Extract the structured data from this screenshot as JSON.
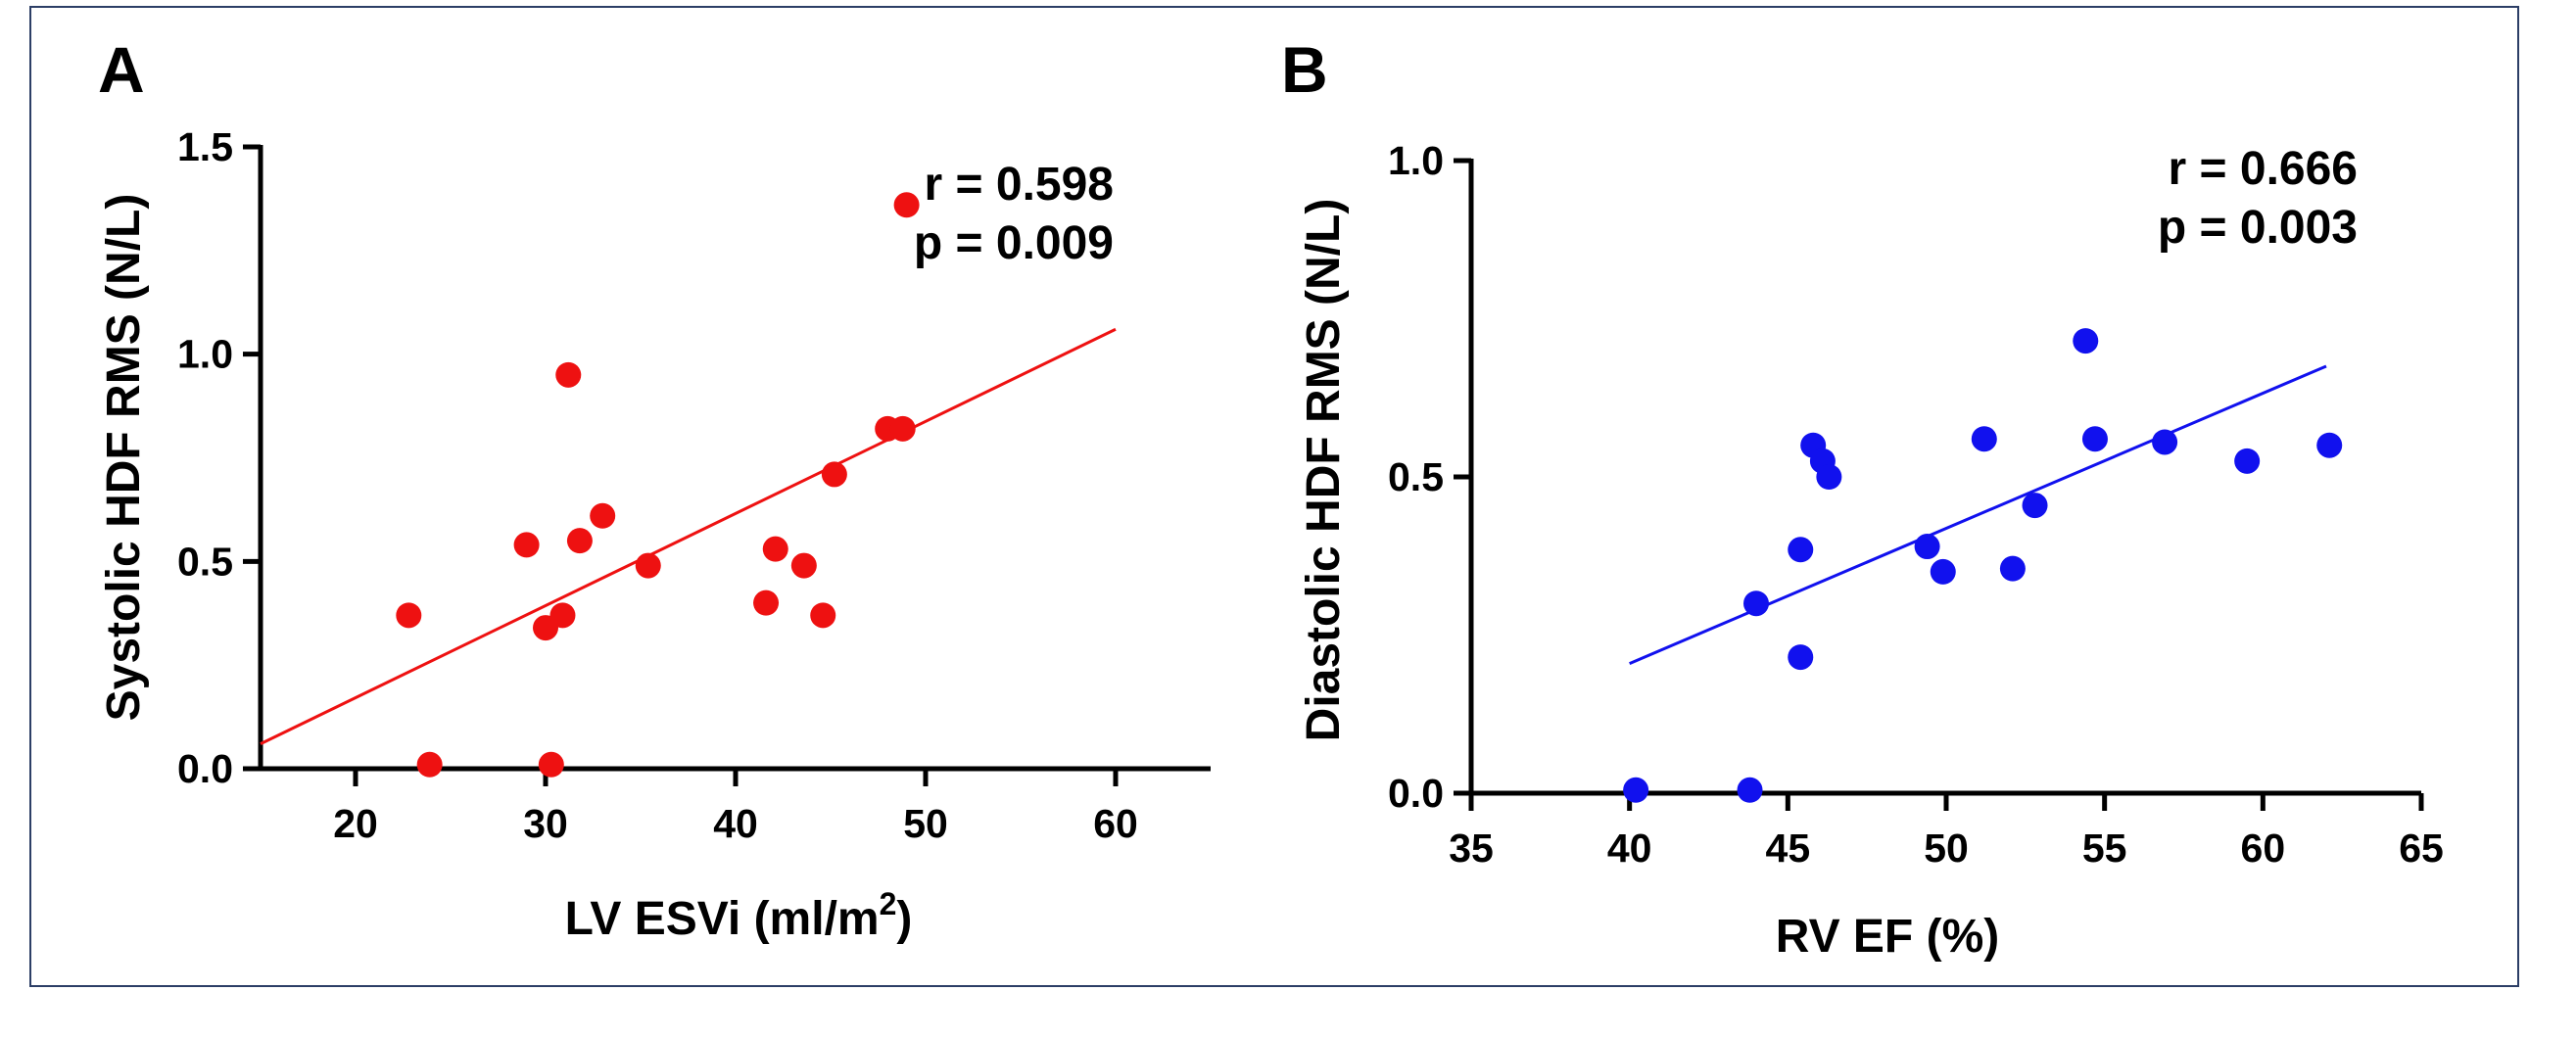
{
  "chart_data": [
    {
      "type": "scatter",
      "panel_label": "A",
      "title": "",
      "xlabel": "LV ESVi (ml/m",
      "xlabel_superscript": "2",
      "xlabel_suffix": ")",
      "ylabel": "Systolic HDF  RMS (N/L)",
      "xlim": [
        15,
        65
      ],
      "ylim": [
        0,
        1.5
      ],
      "xticks": [
        "20",
        "30",
        "40",
        "50",
        "60"
      ],
      "xtick_values": [
        20,
        30,
        40,
        50,
        60
      ],
      "yticks": [
        "0.0",
        "0.5",
        "1.0",
        "1.5"
      ],
      "ytick_values": [
        0,
        0.5,
        1.0,
        1.5
      ],
      "color": "#ee1111",
      "stats": {
        "r": "r = 0.598",
        "p": "p = 0.009"
      },
      "legend_position": "top-right",
      "grid": false,
      "points": [
        {
          "x": 22.8,
          "y": 0.37
        },
        {
          "x": 23.9,
          "y": 0.01
        },
        {
          "x": 29.0,
          "y": 0.54
        },
        {
          "x": 30.0,
          "y": 0.34
        },
        {
          "x": 30.3,
          "y": 0.01
        },
        {
          "x": 30.9,
          "y": 0.37
        },
        {
          "x": 31.2,
          "y": 0.95
        },
        {
          "x": 31.8,
          "y": 0.55
        },
        {
          "x": 33.0,
          "y": 0.61
        },
        {
          "x": 35.4,
          "y": 0.49
        },
        {
          "x": 41.6,
          "y": 0.4
        },
        {
          "x": 42.1,
          "y": 0.53
        },
        {
          "x": 43.6,
          "y": 0.49
        },
        {
          "x": 44.6,
          "y": 0.37
        },
        {
          "x": 45.2,
          "y": 0.71
        },
        {
          "x": 48.0,
          "y": 0.82
        },
        {
          "x": 48.8,
          "y": 0.82
        },
        {
          "x": 49.0,
          "y": 1.36
        }
      ],
      "fit_line": {
        "x": [
          15,
          60
        ],
        "y": [
          0.06,
          1.06
        ]
      }
    },
    {
      "type": "scatter",
      "panel_label": "B",
      "title": "",
      "xlabel": "RV EF (%)",
      "ylabel": "Diastolic HDF RMS (N/L)",
      "xlim": [
        35,
        65
      ],
      "ylim": [
        0,
        1.0
      ],
      "xticks": [
        "35",
        "40",
        "45",
        "50",
        "55",
        "60",
        "65"
      ],
      "xtick_values": [
        35,
        40,
        45,
        50,
        55,
        60,
        65
      ],
      "yticks": [
        "0.0",
        "0.5",
        "1.0"
      ],
      "ytick_values": [
        0,
        0.5,
        1.0
      ],
      "color": "#1111ee",
      "stats": {
        "r": "r = 0.666",
        "p": "p = 0.003"
      },
      "legend_position": "top-right",
      "grid": false,
      "points": [
        {
          "x": 40.2,
          "y": 0.005
        },
        {
          "x": 43.8,
          "y": 0.005
        },
        {
          "x": 44.0,
          "y": 0.3
        },
        {
          "x": 45.4,
          "y": 0.215
        },
        {
          "x": 45.4,
          "y": 0.385
        },
        {
          "x": 45.8,
          "y": 0.55
        },
        {
          "x": 46.1,
          "y": 0.525
        },
        {
          "x": 46.3,
          "y": 0.5
        },
        {
          "x": 49.4,
          "y": 0.39
        },
        {
          "x": 49.9,
          "y": 0.35
        },
        {
          "x": 51.2,
          "y": 0.56
        },
        {
          "x": 52.1,
          "y": 0.355
        },
        {
          "x": 52.8,
          "y": 0.455
        },
        {
          "x": 54.4,
          "y": 0.715
        },
        {
          "x": 54.7,
          "y": 0.56
        },
        {
          "x": 56.9,
          "y": 0.555
        },
        {
          "x": 59.5,
          "y": 0.525
        },
        {
          "x": 62.1,
          "y": 0.55
        }
      ],
      "fit_line": {
        "x": [
          40,
          62
        ],
        "y": [
          0.205,
          0.675
        ]
      }
    }
  ]
}
